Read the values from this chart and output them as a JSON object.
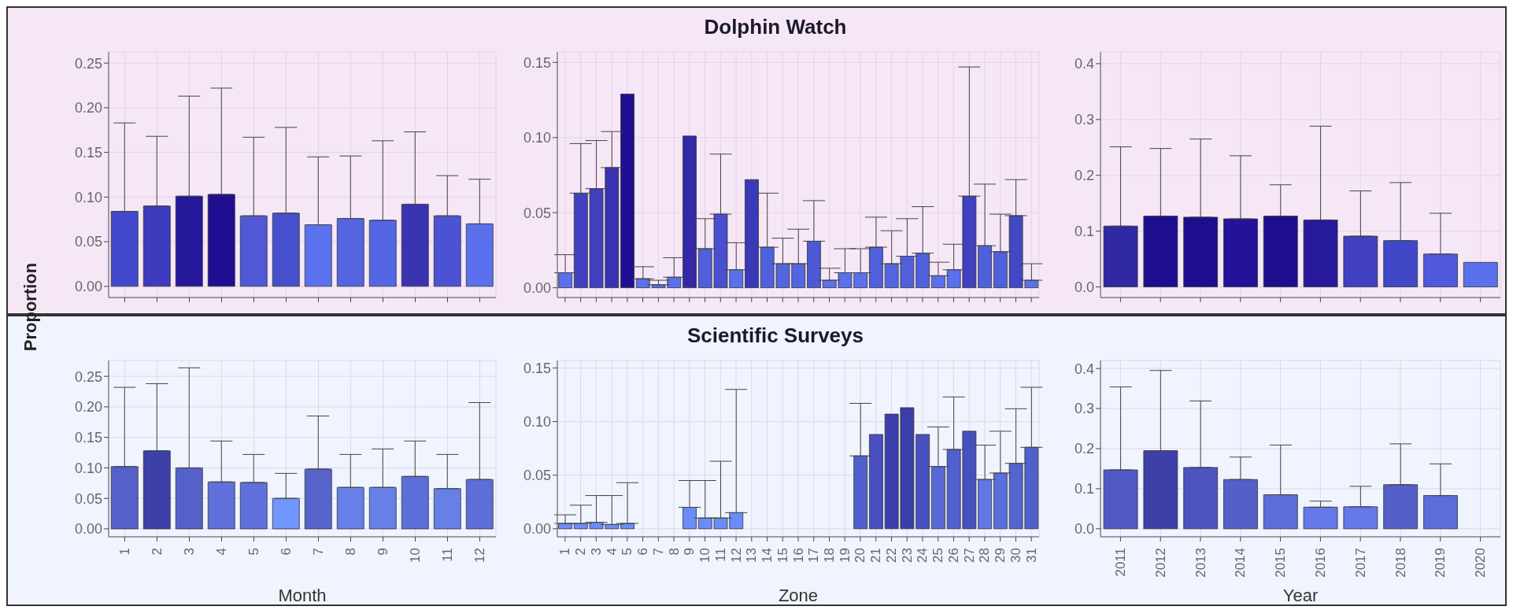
{
  "chart_data": [
    {
      "type": "bar",
      "ylabel": "Proportion",
      "categories": [
        "1",
        "2",
        "3",
        "4",
        "5",
        "6",
        "7",
        "8",
        "9",
        "10",
        "11",
        "12"
      ],
      "tick_labels": "y",
      "grid": true,
      "values": [
        0.084,
        0.09,
        0.101,
        0.103,
        0.079,
        0.082,
        0.069,
        0.076,
        0.074,
        0.092,
        0.079,
        0.07
      ],
      "errors": [
        [
          0.084,
          0.183
        ],
        [
          0.09,
          0.168
        ],
        [
          0.101,
          0.213
        ],
        [
          0.103,
          0.222
        ],
        [
          0.079,
          0.167
        ],
        [
          0.082,
          0.178
        ],
        [
          0.069,
          0.145
        ],
        [
          0.076,
          0.146
        ],
        [
          0.074,
          0.163
        ],
        [
          0.092,
          0.173
        ],
        [
          0.079,
          0.124
        ],
        [
          0.07,
          0.12
        ]
      ],
      "colors": [
        "#4349cc",
        "#3c3cbc",
        "#25179a",
        "#1f0f90",
        "#5058d6",
        "#4650cc",
        "#5a72ee",
        "#5564e0",
        "#5366e4",
        "#3a33b0",
        "#4b52d4",
        "#5a70ec"
      ],
      "ylim": [
        -0.0125,
        0.2625
      ],
      "yticks": [
        {
          "value": 0,
          "label": "0.00"
        },
        0.05,
        {
          "value": 0.1,
          "label": "0.10"
        },
        0.15,
        {
          "value": 0.2,
          "label": "0.20"
        },
        0.25
      ]
    },
    {
      "type": "bar",
      "title": "Dolphin Watch",
      "categories": [
        "1",
        "2",
        "3",
        "4",
        "5",
        "6",
        "7",
        "8",
        "9",
        "10",
        "11",
        "12",
        "13",
        "14",
        "15",
        "16",
        "17",
        "18",
        "19",
        "20",
        "21",
        "22",
        "23",
        "24",
        "25",
        "26",
        "27",
        "28",
        "29",
        "30",
        "31"
      ],
      "tick_labels": "y",
      "grid": true,
      "values": [
        0.01,
        0.063,
        0.066,
        0.08,
        0.129,
        0.006,
        0.002,
        0.007,
        0.101,
        0.026,
        0.049,
        0.012,
        0.072,
        0.027,
        0.016,
        0.016,
        0.031,
        0.005,
        0.01,
        0.01,
        0.027,
        0.016,
        0.021,
        0.023,
        0.008,
        0.012,
        0.061,
        0.028,
        0.024,
        0.048,
        0.005
      ],
      "errors": [
        [
          0.01,
          0.022
        ],
        [
          0.063,
          0.096
        ],
        [
          0.066,
          0.098
        ],
        [
          0.08,
          0.104
        ],
        null,
        [
          0.006,
          0.014
        ],
        [
          0.002,
          0.005
        ],
        [
          0.007,
          0.02
        ],
        null,
        [
          0.026,
          0.046
        ],
        [
          0.049,
          0.089
        ],
        [
          0.012,
          0.03
        ],
        null,
        [
          0.027,
          0.063
        ],
        [
          0.016,
          0.033
        ],
        [
          0.016,
          0.039
        ],
        [
          0.031,
          0.058
        ],
        [
          0.005,
          0.013
        ],
        [
          0.01,
          0.026
        ],
        [
          0.01,
          0.026
        ],
        [
          0.027,
          0.047
        ],
        [
          0.016,
          0.038
        ],
        [
          0.021,
          0.046
        ],
        [
          0.023,
          0.054
        ],
        [
          0.008,
          0.017
        ],
        [
          0.012,
          0.029
        ],
        [
          0.061,
          0.147
        ],
        [
          0.028,
          0.069
        ],
        [
          0.024,
          0.049
        ],
        [
          0.048,
          0.072
        ],
        [
          0.005,
          0.016
        ]
      ],
      "colors": [
        "#5a70ec",
        "#4040c0",
        "#4040c0",
        "#3a33b0",
        "#1f0f90",
        "#5a70ec",
        "#5a70ec",
        "#5a70ec",
        "#3428a8",
        "#5060dc",
        "#4850d0",
        "#5a70ec",
        "#3a3ab8",
        "#5060dc",
        "#5266e0",
        "#5266e0",
        "#4c58d4",
        "#5a70ec",
        "#5a70ec",
        "#5a70ec",
        "#5060dc",
        "#5266e0",
        "#5060dc",
        "#5060dc",
        "#5a70ec",
        "#5a70ec",
        "#4040c0",
        "#5060dc",
        "#5060dc",
        "#4048c4",
        "#5a70ec"
      ],
      "ylim": [
        -0.0065,
        0.157
      ],
      "yticks": [
        {
          "value": 0,
          "label": "0.00"
        },
        0.05,
        {
          "value": 0.1,
          "label": "0.10"
        },
        0.15
      ]
    },
    {
      "type": "bar",
      "categories": [
        "2011",
        "2012",
        "2013",
        "2014",
        "2015",
        "2016",
        "2017",
        "2018",
        "2019",
        "2020"
      ],
      "tick_labels": "y",
      "grid": true,
      "values": [
        0.109,
        0.127,
        0.125,
        0.122,
        0.127,
        0.12,
        0.091,
        0.083,
        0.059,
        0.044
      ],
      "errors": [
        [
          0.109,
          0.251
        ],
        [
          0.127,
          0.248
        ],
        [
          0.125,
          0.265
        ],
        [
          0.122,
          0.235
        ],
        [
          0.127,
          0.183
        ],
        [
          0.12,
          0.288
        ],
        [
          0.091,
          0.172
        ],
        [
          0.083,
          0.187
        ],
        [
          0.059,
          0.132
        ],
        null
      ],
      "colors": [
        "#3128a4",
        "#1d0e8e",
        "#1d0e8e",
        "#22139a",
        "#1d0e8e",
        "#261a9a",
        "#4040c0",
        "#4048c8",
        "#5058dc",
        "#5a70ec"
      ],
      "ylim": [
        -0.019,
        0.421
      ],
      "yticks": [
        {
          "value": 0,
          "label": "0.0"
        },
        0.1,
        0.2,
        0.3,
        0.4
      ]
    },
    {
      "type": "bar",
      "xlabel": "Month",
      "categories": [
        "1",
        "2",
        "3",
        "4",
        "5",
        "6",
        "7",
        "8",
        "9",
        "10",
        "11",
        "12"
      ],
      "grid": true,
      "values": [
        0.102,
        0.128,
        0.1,
        0.077,
        0.076,
        0.05,
        0.098,
        0.068,
        0.068,
        0.086,
        0.066,
        0.081
      ],
      "errors": [
        [
          0.102,
          0.232
        ],
        [
          0.128,
          0.238
        ],
        [
          0.1,
          0.264
        ],
        [
          0.077,
          0.144
        ],
        [
          0.076,
          0.122
        ],
        [
          0.05,
          0.091
        ],
        [
          0.098,
          0.185
        ],
        [
          0.068,
          0.122
        ],
        [
          0.068,
          0.131
        ],
        [
          0.086,
          0.144
        ],
        [
          0.066,
          0.122
        ],
        [
          0.081,
          0.207
        ]
      ],
      "colors": [
        "#5560c8",
        "#3c40a8",
        "#5560c8",
        "#6070dc",
        "#6070dc",
        "#7096ff",
        "#5864cc",
        "#6680e8",
        "#6680e8",
        "#5c6ed8",
        "#6680e8",
        "#5c6ed8"
      ],
      "ylim": [
        -0.013,
        0.276
      ],
      "yticks": [
        {
          "value": 0,
          "label": "0.00"
        },
        0.05,
        {
          "value": 0.1,
          "label": "0.10"
        },
        0.15,
        {
          "value": 0.2,
          "label": "0.20"
        },
        0.25
      ]
    },
    {
      "type": "bar",
      "title": "Scientific Surveys",
      "xlabel": "Zone",
      "categories": [
        "1",
        "2",
        "3",
        "4",
        "5",
        "6",
        "7",
        "8",
        "9",
        "10",
        "11",
        "12",
        "13",
        "14",
        "15",
        "16",
        "17",
        "18",
        "19",
        "20",
        "21",
        "22",
        "23",
        "24",
        "25",
        "26",
        "27",
        "28",
        "29",
        "30",
        "31"
      ],
      "grid": true,
      "values": [
        0.005,
        0.005,
        0.006,
        0.004,
        0.005,
        null,
        null,
        null,
        0.02,
        0.01,
        0.01,
        0.015,
        null,
        null,
        null,
        null,
        null,
        null,
        null,
        0.068,
        0.088,
        0.107,
        0.113,
        0.088,
        0.058,
        0.074,
        0.091,
        0.046,
        0.052,
        0.061,
        0.076
      ],
      "errors": [
        [
          0.005,
          0.013
        ],
        [
          0.005,
          0.022
        ],
        [
          0.006,
          0.031
        ],
        [
          0.004,
          0.031
        ],
        [
          0.005,
          0.043
        ],
        null,
        null,
        null,
        [
          0.02,
          0.045
        ],
        [
          0.01,
          0.045
        ],
        [
          0.01,
          0.063
        ],
        [
          0.015,
          0.13
        ],
        null,
        null,
        null,
        null,
        null,
        null,
        null,
        [
          0.068,
          0.117
        ],
        null,
        null,
        null,
        null,
        [
          0.058,
          0.095
        ],
        [
          0.074,
          0.123
        ],
        null,
        [
          0.046,
          0.078
        ],
        [
          0.052,
          0.091
        ],
        [
          0.061,
          0.112
        ],
        [
          0.076,
          0.132
        ]
      ],
      "colors": [
        "#6a8cf8",
        "#6a8cf8",
        "#6a8cf8",
        "#6a8cf8",
        "#6a8cf8",
        null,
        null,
        null,
        "#6a8cf8",
        "#6a8cf8",
        "#6a8cf8",
        "#6a8cf8",
        null,
        null,
        null,
        null,
        null,
        null,
        null,
        "#5060cc",
        "#4850c0",
        "#3c40ac",
        "#3a3ea8",
        "#4850c0",
        "#5868d4",
        "#5060cc",
        "#4850c0",
        "#6078e4",
        "#5870dc",
        "#5464d0",
        "#5060cc"
      ],
      "ylim": [
        -0.0075,
        0.157
      ],
      "yticks": [
        {
          "value": 0,
          "label": "0.00"
        },
        0.05,
        {
          "value": 0.1,
          "label": "0.10"
        },
        0.15
      ]
    },
    {
      "type": "bar",
      "xlabel": "Year",
      "categories": [
        "2011",
        "2012",
        "2013",
        "2014",
        "2015",
        "2016",
        "2017",
        "2018",
        "2019",
        "2020"
      ],
      "grid": true,
      "values": [
        0.147,
        0.195,
        0.153,
        0.123,
        0.085,
        0.054,
        0.055,
        0.11,
        0.083,
        0
      ],
      "errors": [
        [
          0.147,
          0.354
        ],
        [
          0.195,
          0.395
        ],
        [
          0.153,
          0.319
        ],
        [
          0.123,
          0.179
        ],
        [
          0.085,
          0.209
        ],
        [
          0.054,
          0.069
        ],
        [
          0.055,
          0.106
        ],
        [
          0.11,
          0.212
        ],
        [
          0.083,
          0.162
        ],
        null
      ],
      "colors": [
        "#5058c4",
        "#3c40a8",
        "#4c54c0",
        "#5460c8",
        "#5c6cd8",
        "#6478e8",
        "#6478e8",
        "#5460c8",
        "#5c6cd8",
        "#6478e8"
      ],
      "ylim": [
        -0.02,
        0.42
      ],
      "yticks": [
        {
          "value": 0,
          "label": "0.0"
        },
        0.1,
        0.2,
        0.3,
        0.4
      ]
    }
  ]
}
